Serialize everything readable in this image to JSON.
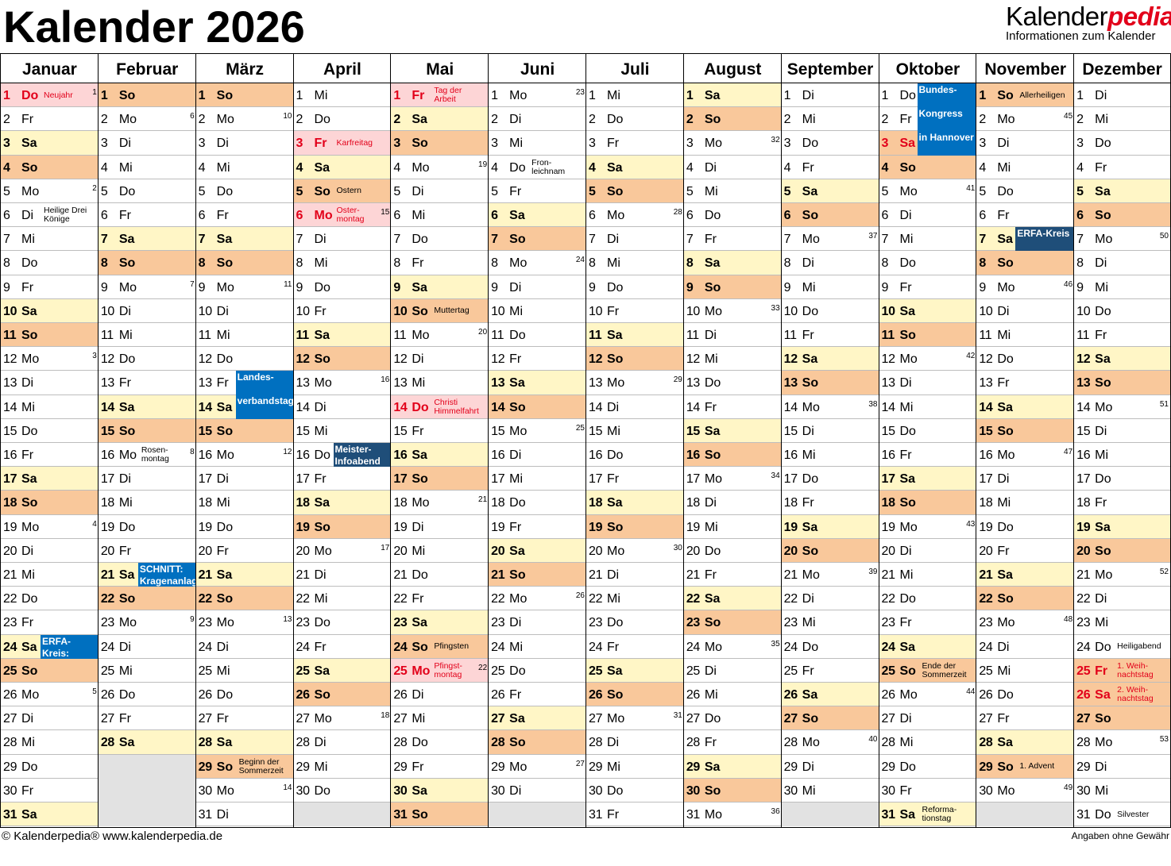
{
  "title": "Kalender 2026",
  "brand": {
    "name_plain": "Kalender",
    "name_accent": "pedia",
    "subtitle": "Informationen zum Kalender"
  },
  "footer": {
    "left": "© Kalenderpedia®   www.kalenderpedia.de",
    "right": "Angaben ohne Gewähr"
  },
  "colors": {
    "saturday": "#fff6c6",
    "sunday": "#f9c89b",
    "holiday": "#fdd5d6",
    "empty": "#e2e2e2",
    "holiday_text": "#e2001a",
    "event_blue": "#0070c0",
    "event_dark": "#1f4e79"
  },
  "months": [
    {
      "name": "Januar",
      "days": 31,
      "start": 4
    },
    {
      "name": "Februar",
      "days": 28,
      "start": 0
    },
    {
      "name": "März",
      "days": 31,
      "start": 0
    },
    {
      "name": "April",
      "days": 30,
      "start": 3
    },
    {
      "name": "Mai",
      "days": 31,
      "start": 5
    },
    {
      "name": "Juni",
      "days": 30,
      "start": 1
    },
    {
      "name": "Juli",
      "days": 31,
      "start": 3
    },
    {
      "name": "August",
      "days": 31,
      "start": 6
    },
    {
      "name": "September",
      "days": 30,
      "start": 2
    },
    {
      "name": "Oktober",
      "days": 31,
      "start": 4
    },
    {
      "name": "November",
      "days": 30,
      "start": 0
    },
    {
      "name": "Dezember",
      "days": 31,
      "start": 2
    }
  ],
  "weekdays": [
    "So",
    "Mo",
    "Di",
    "Mi",
    "Do",
    "Fr",
    "Sa"
  ],
  "holidays": [
    {
      "m": 0,
      "d": 1,
      "label": "Neujahr"
    },
    {
      "m": 3,
      "d": 3,
      "label": "Karfreitag"
    },
    {
      "m": 3,
      "d": 6,
      "label": "Oster-\nmontag"
    },
    {
      "m": 4,
      "d": 1,
      "label": "Tag der\nArbeit"
    },
    {
      "m": 4,
      "d": 14,
      "label": "Christi\nHimmelfahrt"
    },
    {
      "m": 4,
      "d": 25,
      "label": "Pfingst-\nmontag"
    },
    {
      "m": 9,
      "d": 3,
      "label": ""
    },
    {
      "m": 11,
      "d": 25,
      "label": "1. Weih-\nnachtstag"
    },
    {
      "m": 11,
      "d": 26,
      "label": "2. Weih-\nnachtstag"
    }
  ],
  "notes": [
    {
      "m": 0,
      "d": 6,
      "label": "Heilige Drei\nKönige"
    },
    {
      "m": 1,
      "d": 16,
      "label": "Rosen-\nmontag"
    },
    {
      "m": 2,
      "d": 29,
      "label": "Beginn der\nSommerzeit"
    },
    {
      "m": 3,
      "d": 5,
      "label": "Ostern"
    },
    {
      "m": 4,
      "d": 10,
      "label": "Muttertag"
    },
    {
      "m": 4,
      "d": 24,
      "label": "Pfingsten"
    },
    {
      "m": 5,
      "d": 4,
      "label": "Fron-\nleichnam"
    },
    {
      "m": 9,
      "d": 25,
      "label": "Ende der\nSommerzeit"
    },
    {
      "m": 9,
      "d": 31,
      "label": "Reforma-\ntionstag"
    },
    {
      "m": 10,
      "d": 1,
      "label": "Allerheiligen"
    },
    {
      "m": 10,
      "d": 29,
      "label": "1. Advent"
    },
    {
      "m": 11,
      "d": 24,
      "label": "Heiligabend"
    },
    {
      "m": 11,
      "d": 31,
      "label": "Silvester"
    }
  ],
  "events": [
    {
      "m": 0,
      "d": 24,
      "span": 1,
      "label": "ERFA-\nKreis:",
      "style": "mid"
    },
    {
      "m": 1,
      "d": 21,
      "span": 1,
      "label": "SCHNITT:\nKragenanlage",
      "style": "mid"
    },
    {
      "m": 2,
      "d": 13,
      "span": 2,
      "label": "Landes-\n\nverbandstag",
      "style": "mid"
    },
    {
      "m": 3,
      "d": 16,
      "span": 1,
      "label": "Meister-\nInfoabend",
      "style": "dark"
    },
    {
      "m": 9,
      "d": 1,
      "span": 3,
      "label": "Bundes-\n\nKongress\n\nin Hannover",
      "style": "mid"
    },
    {
      "m": 10,
      "d": 7,
      "span": 1,
      "label": "ERFA-Kreis",
      "style": "dark"
    }
  ],
  "weeks": [
    {
      "m": 0,
      "d": 1,
      "w": "1"
    },
    {
      "m": 0,
      "d": 5,
      "w": "2"
    },
    {
      "m": 0,
      "d": 12,
      "w": "3"
    },
    {
      "m": 0,
      "d": 19,
      "w": "4"
    },
    {
      "m": 0,
      "d": 26,
      "w": "5"
    },
    {
      "m": 1,
      "d": 2,
      "w": "6"
    },
    {
      "m": 1,
      "d": 9,
      "w": "7"
    },
    {
      "m": 1,
      "d": 16,
      "w": "8"
    },
    {
      "m": 1,
      "d": 23,
      "w": "9"
    },
    {
      "m": 2,
      "d": 2,
      "w": "10"
    },
    {
      "m": 2,
      "d": 9,
      "w": "11"
    },
    {
      "m": 2,
      "d": 16,
      "w": "12"
    },
    {
      "m": 2,
      "d": 23,
      "w": "13"
    },
    {
      "m": 2,
      "d": 30,
      "w": "14"
    },
    {
      "m": 3,
      "d": 6,
      "w": "15"
    },
    {
      "m": 3,
      "d": 13,
      "w": "16"
    },
    {
      "m": 3,
      "d": 20,
      "w": "17"
    },
    {
      "m": 3,
      "d": 27,
      "w": "18"
    },
    {
      "m": 4,
      "d": 4,
      "w": "19"
    },
    {
      "m": 4,
      "d": 11,
      "w": "20"
    },
    {
      "m": 4,
      "d": 18,
      "w": "21"
    },
    {
      "m": 4,
      "d": 25,
      "w": "22"
    },
    {
      "m": 5,
      "d": 1,
      "w": "23"
    },
    {
      "m": 5,
      "d": 8,
      "w": "24"
    },
    {
      "m": 5,
      "d": 15,
      "w": "25"
    },
    {
      "m": 5,
      "d": 22,
      "w": "26"
    },
    {
      "m": 5,
      "d": 29,
      "w": "27"
    },
    {
      "m": 6,
      "d": 6,
      "w": "28"
    },
    {
      "m": 6,
      "d": 13,
      "w": "29"
    },
    {
      "m": 6,
      "d": 20,
      "w": "30"
    },
    {
      "m": 6,
      "d": 27,
      "w": "31"
    },
    {
      "m": 7,
      "d": 3,
      "w": "32"
    },
    {
      "m": 7,
      "d": 10,
      "w": "33"
    },
    {
      "m": 7,
      "d": 17,
      "w": "34"
    },
    {
      "m": 7,
      "d": 24,
      "w": "35"
    },
    {
      "m": 7,
      "d": 31,
      "w": "36"
    },
    {
      "m": 8,
      "d": 7,
      "w": "37"
    },
    {
      "m": 8,
      "d": 14,
      "w": "38"
    },
    {
      "m": 8,
      "d": 21,
      "w": "39"
    },
    {
      "m": 8,
      "d": 28,
      "w": "40"
    },
    {
      "m": 9,
      "d": 5,
      "w": "41"
    },
    {
      "m": 9,
      "d": 12,
      "w": "42"
    },
    {
      "m": 9,
      "d": 19,
      "w": "43"
    },
    {
      "m": 9,
      "d": 26,
      "w": "44"
    },
    {
      "m": 10,
      "d": 2,
      "w": "45"
    },
    {
      "m": 10,
      "d": 9,
      "w": "46"
    },
    {
      "m": 10,
      "d": 16,
      "w": "47"
    },
    {
      "m": 10,
      "d": 23,
      "w": "48"
    },
    {
      "m": 10,
      "d": 30,
      "w": "49"
    },
    {
      "m": 11,
      "d": 7,
      "w": "50"
    },
    {
      "m": 11,
      "d": 14,
      "w": "51"
    },
    {
      "m": 11,
      "d": 21,
      "w": "52"
    },
    {
      "m": 11,
      "d": 28,
      "w": "53"
    }
  ]
}
